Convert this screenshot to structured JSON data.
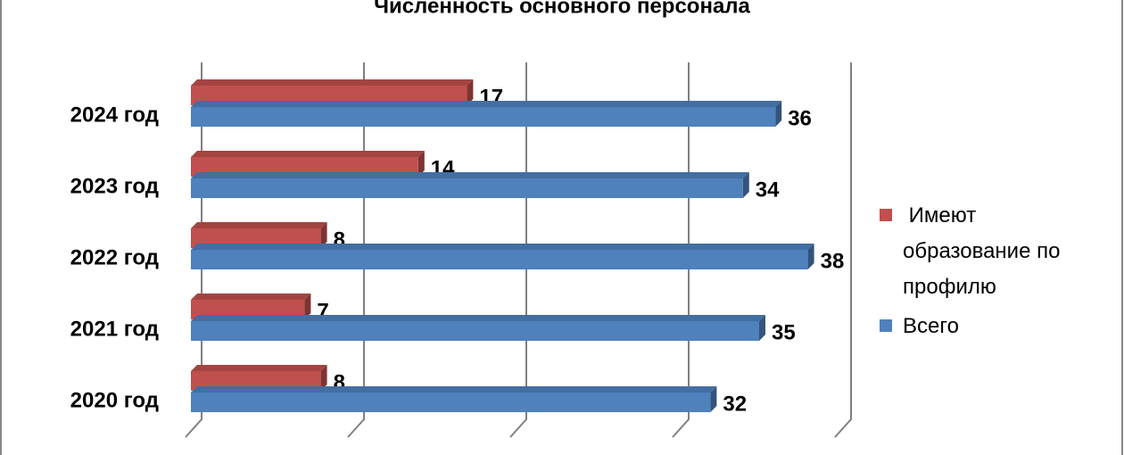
{
  "chart_data": {
    "type": "bar3d_horizontal",
    "title": "Численность основного персонала",
    "categories": [
      "2020 год",
      "2021 год",
      "2022 год",
      "2023 год",
      "2024 год"
    ],
    "series": [
      {
        "name": " Имеют образование по профилю",
        "color": "#c0504d",
        "values": [
          8,
          7,
          8,
          14,
          17
        ]
      },
      {
        "name": "Всего",
        "color": "#4f81bd",
        "values": [
          32,
          35,
          38,
          34,
          36
        ]
      }
    ],
    "xlim": [
      0,
      40
    ],
    "xticks": [
      0,
      10,
      20,
      30,
      40
    ],
    "grid": true,
    "legend": "right"
  }
}
